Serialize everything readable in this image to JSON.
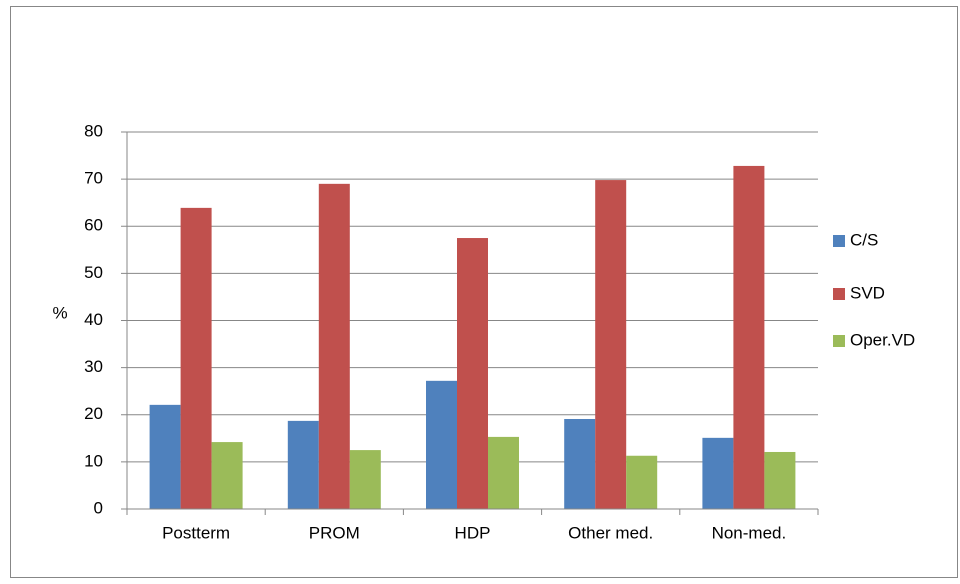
{
  "chart_data": {
    "type": "bar",
    "y_label": "%",
    "categories": [
      "Postterm",
      "PROM",
      "HDP",
      "Other med.",
      "Non-med."
    ],
    "series": [
      {
        "name": "C/S",
        "color": "#4f81bd",
        "values": [
          22.1,
          18.7,
          27.2,
          19.1,
          15.1
        ]
      },
      {
        "name": "SVD",
        "color": "#c0504d",
        "values": [
          63.9,
          69,
          57.5,
          69.8,
          72.8
        ]
      },
      {
        "name": "Oper.VD",
        "color": "#9bbb59",
        "values": [
          14.2,
          12.5,
          15.3,
          11.3,
          12.1
        ]
      }
    ],
    "ylim": [
      0,
      80
    ],
    "yticks": [
      0,
      10,
      20,
      30,
      40,
      50,
      60,
      70,
      80
    ],
    "grid": true,
    "legend": "right"
  }
}
